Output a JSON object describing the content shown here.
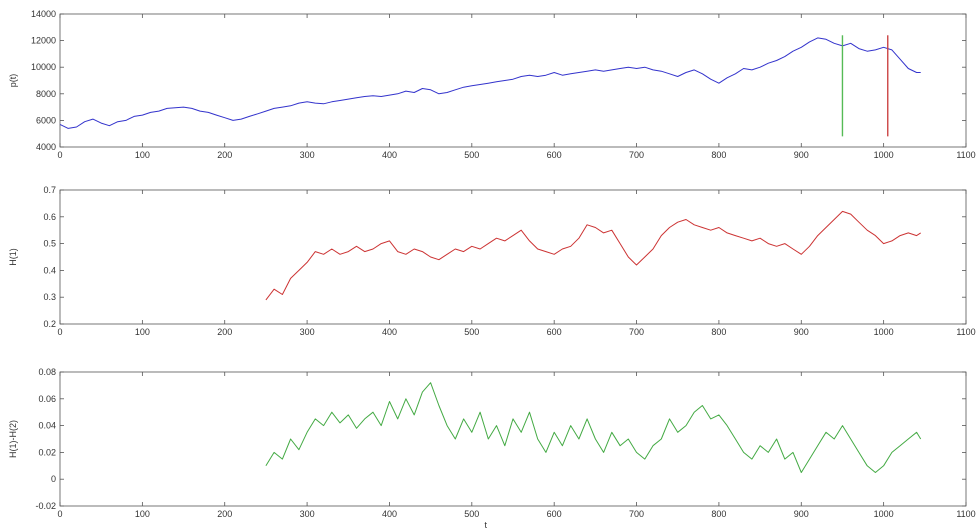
{
  "chart_data": [
    {
      "type": "line",
      "ylabel": "p(t)",
      "xlabel": "",
      "xlim": [
        0,
        1100
      ],
      "ylim": [
        4000,
        14000
      ],
      "xticks": [
        "0",
        "100",
        "200",
        "300",
        "400",
        "500",
        "600",
        "700",
        "800",
        "900",
        "1000",
        "1100"
      ],
      "yticks": [
        "4000",
        "6000",
        "8000",
        "10000",
        "12000",
        "14000"
      ],
      "grid": false,
      "series": [
        {
          "color": "#3333cc",
          "x": [
            0,
            10,
            20,
            30,
            40,
            50,
            60,
            70,
            80,
            90,
            100,
            110,
            120,
            130,
            140,
            150,
            160,
            170,
            180,
            190,
            200,
            210,
            220,
            230,
            240,
            250,
            260,
            270,
            280,
            290,
            300,
            310,
            320,
            330,
            340,
            350,
            360,
            370,
            380,
            390,
            400,
            410,
            420,
            430,
            440,
            450,
            460,
            470,
            480,
            490,
            500,
            510,
            520,
            530,
            540,
            550,
            560,
            570,
            580,
            590,
            600,
            610,
            620,
            630,
            640,
            650,
            660,
            670,
            680,
            690,
            700,
            710,
            720,
            730,
            740,
            750,
            760,
            770,
            780,
            790,
            800,
            810,
            820,
            830,
            840,
            850,
            860,
            870,
            880,
            890,
            900,
            910,
            920,
            930,
            940,
            950,
            960,
            970,
            980,
            990,
            1000,
            1010,
            1020,
            1030,
            1040,
            1045
          ],
          "values": [
            5700,
            5400,
            5500,
            5900,
            6100,
            5800,
            5600,
            5900,
            6000,
            6300,
            6400,
            6600,
            6700,
            6900,
            6950,
            7000,
            6900,
            6700,
            6600,
            6400,
            6200,
            6000,
            6100,
            6300,
            6500,
            6700,
            6900,
            7000,
            7100,
            7300,
            7400,
            7300,
            7250,
            7400,
            7500,
            7600,
            7700,
            7800,
            7850,
            7800,
            7900,
            8000,
            8200,
            8100,
            8400,
            8300,
            8000,
            8100,
            8300,
            8500,
            8600,
            8700,
            8800,
            8900,
            9000,
            9100,
            9300,
            9400,
            9300,
            9400,
            9600,
            9400,
            9500,
            9600,
            9700,
            9800,
            9700,
            9800,
            9900,
            10000,
            9900,
            10000,
            9800,
            9700,
            9500,
            9300,
            9600,
            9800,
            9500,
            9100,
            8800,
            9200,
            9500,
            9900,
            9800,
            10000,
            10300,
            10500,
            10800,
            11200,
            11500,
            11900,
            12200,
            12100,
            11800,
            11600,
            11800,
            11400,
            11200,
            11300,
            11500,
            11300,
            10600,
            9900,
            9600,
            9600
          ]
        }
      ],
      "markers": [
        {
          "x": 950,
          "ymin": 4800,
          "ymax": 12400,
          "color": "#55bb55"
        },
        {
          "x": 1005,
          "ymin": 4800,
          "ymax": 12400,
          "color": "#cc4444"
        }
      ]
    },
    {
      "type": "line",
      "ylabel": "H(1)",
      "xlabel": "",
      "xlim": [
        0,
        1100
      ],
      "ylim": [
        0.2,
        0.7
      ],
      "xticks": [
        "0",
        "100",
        "200",
        "300",
        "400",
        "500",
        "600",
        "700",
        "800",
        "900",
        "1000",
        "1100"
      ],
      "yticks": [
        "0.2",
        "0.3",
        "0.4",
        "0.5",
        "0.6",
        "0.7"
      ],
      "grid": false,
      "series": [
        {
          "color": "#cc3333",
          "x": [
            250,
            260,
            270,
            280,
            290,
            300,
            310,
            320,
            330,
            340,
            350,
            360,
            370,
            380,
            390,
            400,
            410,
            420,
            430,
            440,
            450,
            460,
            470,
            480,
            490,
            500,
            510,
            520,
            530,
            540,
            550,
            560,
            570,
            580,
            590,
            600,
            610,
            620,
            630,
            640,
            650,
            660,
            670,
            680,
            690,
            700,
            710,
            720,
            730,
            740,
            750,
            760,
            770,
            780,
            790,
            800,
            810,
            820,
            830,
            840,
            850,
            860,
            870,
            880,
            890,
            900,
            910,
            920,
            930,
            940,
            950,
            960,
            970,
            980,
            990,
            1000,
            1010,
            1020,
            1030,
            1040,
            1045
          ],
          "values": [
            0.29,
            0.33,
            0.31,
            0.37,
            0.4,
            0.43,
            0.47,
            0.46,
            0.48,
            0.46,
            0.47,
            0.49,
            0.47,
            0.48,
            0.5,
            0.51,
            0.47,
            0.46,
            0.48,
            0.47,
            0.45,
            0.44,
            0.46,
            0.48,
            0.47,
            0.49,
            0.48,
            0.5,
            0.52,
            0.51,
            0.53,
            0.55,
            0.51,
            0.48,
            0.47,
            0.46,
            0.48,
            0.49,
            0.52,
            0.57,
            0.56,
            0.54,
            0.55,
            0.5,
            0.45,
            0.42,
            0.45,
            0.48,
            0.53,
            0.56,
            0.58,
            0.59,
            0.57,
            0.56,
            0.55,
            0.56,
            0.54,
            0.53,
            0.52,
            0.51,
            0.52,
            0.5,
            0.49,
            0.5,
            0.48,
            0.46,
            0.49,
            0.53,
            0.56,
            0.59,
            0.62,
            0.61,
            0.58,
            0.55,
            0.53,
            0.5,
            0.51,
            0.53,
            0.54,
            0.53,
            0.54
          ]
        }
      ]
    },
    {
      "type": "line",
      "ylabel": "H(1)-H(2)",
      "xlabel": "t",
      "xlim": [
        0,
        1100
      ],
      "ylim": [
        -0.02,
        0.08
      ],
      "xticks": [
        "0",
        "100",
        "200",
        "300",
        "400",
        "500",
        "600",
        "700",
        "800",
        "900",
        "1000",
        "1100"
      ],
      "yticks": [
        "-0.02",
        "0",
        "0.02",
        "0.04",
        "0.06",
        "0.08"
      ],
      "grid": false,
      "series": [
        {
          "color": "#44aa44",
          "x": [
            250,
            260,
            270,
            280,
            290,
            300,
            310,
            320,
            330,
            340,
            350,
            360,
            370,
            380,
            390,
            400,
            410,
            420,
            430,
            440,
            450,
            460,
            470,
            480,
            490,
            500,
            510,
            520,
            530,
            540,
            550,
            560,
            570,
            580,
            590,
            600,
            610,
            620,
            630,
            640,
            650,
            660,
            670,
            680,
            690,
            700,
            710,
            720,
            730,
            740,
            750,
            760,
            770,
            780,
            790,
            800,
            810,
            820,
            830,
            840,
            850,
            860,
            870,
            880,
            890,
            900,
            910,
            920,
            930,
            940,
            950,
            960,
            970,
            980,
            990,
            1000,
            1010,
            1020,
            1030,
            1040,
            1045
          ],
          "values": [
            0.01,
            0.02,
            0.015,
            0.03,
            0.022,
            0.035,
            0.045,
            0.04,
            0.05,
            0.042,
            0.048,
            0.038,
            0.045,
            0.05,
            0.04,
            0.058,
            0.045,
            0.06,
            0.048,
            0.065,
            0.072,
            0.055,
            0.04,
            0.03,
            0.045,
            0.035,
            0.05,
            0.03,
            0.04,
            0.025,
            0.045,
            0.035,
            0.05,
            0.03,
            0.02,
            0.035,
            0.025,
            0.04,
            0.03,
            0.045,
            0.03,
            0.02,
            0.035,
            0.025,
            0.03,
            0.02,
            0.015,
            0.025,
            0.03,
            0.045,
            0.035,
            0.04,
            0.05,
            0.055,
            0.045,
            0.048,
            0.04,
            0.03,
            0.02,
            0.015,
            0.025,
            0.02,
            0.03,
            0.015,
            0.02,
            0.005,
            0.015,
            0.025,
            0.035,
            0.03,
            0.04,
            0.03,
            0.02,
            0.01,
            0.005,
            0.01,
            0.02,
            0.025,
            0.03,
            0.035,
            0.03
          ]
        }
      ]
    }
  ]
}
